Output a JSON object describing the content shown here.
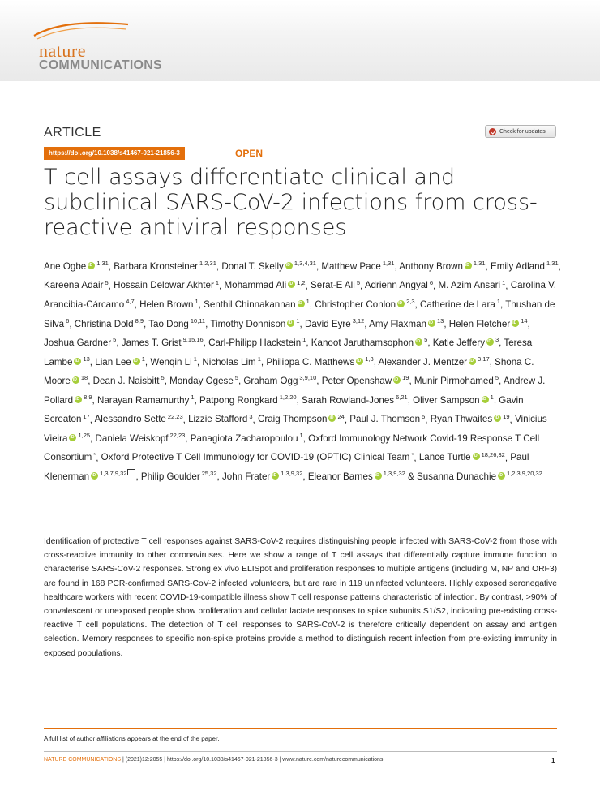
{
  "journal": {
    "logo_line1": "nature",
    "logo_line2": "COMMUNICATIONS"
  },
  "article_type": "ARTICLE",
  "check_updates": "Check for updates",
  "doi_link": "https://doi.org/10.1038/s41467-021-21856-3",
  "open_access": "OPEN",
  "title": "T cell assays differentiate clinical and subclinical SARS-CoV-2 infections from cross-reactive antiviral responses",
  "authors": [
    {
      "name": "Ane Ogbe",
      "orcid": true,
      "aff": "1,31"
    },
    {
      "name": "Barbara Kronsteiner",
      "aff": "1,2,31"
    },
    {
      "name": "Donal T. Skelly",
      "orcid": true,
      "aff": "1,3,4,31"
    },
    {
      "name": "Matthew Pace",
      "aff": "1,31"
    },
    {
      "name": "Anthony Brown",
      "orcid": true,
      "aff": "1,31"
    },
    {
      "name": "Emily Adland",
      "aff": "1,31"
    },
    {
      "name": "Kareena Adair",
      "aff": "5"
    },
    {
      "name": "Hossain Delowar Akhter",
      "aff": "1"
    },
    {
      "name": "Mohammad Ali",
      "orcid": true,
      "aff": "1,2"
    },
    {
      "name": "Serat-E Ali",
      "aff": "5"
    },
    {
      "name": "Adrienn Angyal",
      "aff": "6"
    },
    {
      "name": "M. Azim Ansari",
      "aff": "1"
    },
    {
      "name": "Carolina V. Arancibia-Cárcamo",
      "aff": "4,7"
    },
    {
      "name": "Helen Brown",
      "aff": "1"
    },
    {
      "name": "Senthil Chinnakannan",
      "orcid": true,
      "aff": "1"
    },
    {
      "name": "Christopher Conlon",
      "orcid": true,
      "aff": "2,3"
    },
    {
      "name": "Catherine de Lara",
      "aff": "1"
    },
    {
      "name": "Thushan de Silva",
      "aff": "6"
    },
    {
      "name": "Christina Dold",
      "aff": "8,9"
    },
    {
      "name": "Tao Dong",
      "aff": "10,11"
    },
    {
      "name": "Timothy Donnison",
      "orcid": true,
      "aff": "1"
    },
    {
      "name": "David Eyre",
      "aff": "3,12"
    },
    {
      "name": "Amy Flaxman",
      "orcid": true,
      "aff": "13"
    },
    {
      "name": "Helen Fletcher",
      "orcid": true,
      "aff": "14"
    },
    {
      "name": "Joshua Gardner",
      "aff": "5"
    },
    {
      "name": "James T. Grist",
      "aff": "9,15,16"
    },
    {
      "name": "Carl-Philipp Hackstein",
      "aff": "1"
    },
    {
      "name": "Kanoot Jaruthamsophon",
      "orcid": true,
      "aff": "5"
    },
    {
      "name": "Katie Jeffery",
      "orcid": true,
      "aff": "3"
    },
    {
      "name": "Teresa Lambe",
      "orcid": true,
      "aff": "13"
    },
    {
      "name": "Lian Lee",
      "orcid": true,
      "aff": "1"
    },
    {
      "name": "Wenqin Li",
      "aff": "1"
    },
    {
      "name": "Nicholas Lim",
      "aff": "1"
    },
    {
      "name": "Philippa C. Matthews",
      "orcid": true,
      "aff": "1,3"
    },
    {
      "name": "Alexander J. Mentzer",
      "orcid": true,
      "aff": "3,17"
    },
    {
      "name": "Shona C. Moore",
      "orcid": true,
      "aff": "18"
    },
    {
      "name": "Dean J. Naisbitt",
      "aff": "5"
    },
    {
      "name": "Monday Ogese",
      "aff": "5"
    },
    {
      "name": "Graham Ogg",
      "aff": "3,9,10"
    },
    {
      "name": "Peter Openshaw",
      "orcid": true,
      "aff": "19"
    },
    {
      "name": "Munir Pirmohamed",
      "aff": "5"
    },
    {
      "name": "Andrew J. Pollard",
      "orcid": true,
      "aff": "8,9"
    },
    {
      "name": "Narayan Ramamurthy",
      "aff": "1"
    },
    {
      "name": "Patpong Rongkard",
      "aff": "1,2,20"
    },
    {
      "name": "Sarah Rowland-Jones",
      "aff": "6,21"
    },
    {
      "name": "Oliver Sampson",
      "orcid": true,
      "aff": "1"
    },
    {
      "name": "Gavin Screaton",
      "aff": "17"
    },
    {
      "name": "Alessandro Sette",
      "aff": "22,23"
    },
    {
      "name": "Lizzie Stafford",
      "aff": "3"
    },
    {
      "name": "Craig Thompson",
      "orcid": true,
      "aff": "24"
    },
    {
      "name": "Paul J. Thomson",
      "aff": "5"
    },
    {
      "name": "Ryan Thwaites",
      "orcid": true,
      "aff": "19"
    },
    {
      "name": "Vinicius Vieira",
      "orcid": true,
      "aff": "1,25"
    },
    {
      "name": "Daniela Weiskopf",
      "aff": "22,23"
    },
    {
      "name": "Panagiota Zacharopoulou",
      "aff": "1"
    },
    {
      "name": "Oxford Immunology Network Covid-19 Response T Cell Consortium",
      "aff": "*"
    },
    {
      "name": "Oxford Protective T Cell Immunology for COVID-19 (OPTIC) Clinical Team",
      "aff": "*"
    },
    {
      "name": "Lance Turtle",
      "orcid": true,
      "aff": "18,26,32"
    },
    {
      "name": "Paul Klenerman",
      "orcid": true,
      "aff": "1,3,7,9,32",
      "corresponding": true
    },
    {
      "name": "Philip Goulder",
      "aff": "25,32"
    },
    {
      "name": "John Frater",
      "orcid": true,
      "aff": "1,3,9,32"
    },
    {
      "name": "Eleanor Barnes",
      "orcid": true,
      "aff": "1,3,9,32",
      "suffix": " &"
    },
    {
      "name": "Susanna Dunachie",
      "orcid": true,
      "aff": "1,2,3,9,20,32"
    }
  ],
  "abstract": "Identification of protective T cell responses against SARS-CoV-2 requires distinguishing people infected with SARS-CoV-2 from those with cross-reactive immunity to other coronaviruses. Here we show a range of T cell assays that differentially capture immune function to characterise SARS-CoV-2 responses. Strong ex vivo ELISpot and proliferation responses to multiple antigens (including M, NP and ORF3) are found in 168 PCR-confirmed SARS-CoV-2 infected volunteers, but are rare in 119 uninfected volunteers. Highly exposed seronegative healthcare workers with recent COVID-19-compatible illness show T cell response patterns characteristic of infection. By contrast, >90% of convalescent or unexposed people show proliferation and cellular lactate responses to spike subunits S1/S2, indicating pre-existing cross-reactive T cell populations. The detection of T cell responses to SARS-CoV-2 is therefore critically dependent on assay and antigen selection. Memory responses to specific non-spike proteins provide a method to distinguish recent infection from pre-existing immunity in exposed populations.",
  "footnote": "A full list of author affiliations appears at the end of the paper.",
  "footer": {
    "journal": "NATURE COMMUNICATIONS",
    "citation": " | (2021)12:2055 | https://doi.org/10.1038/s41467-021-21856-3 | www.nature.com/naturecommunications",
    "page": "1"
  }
}
